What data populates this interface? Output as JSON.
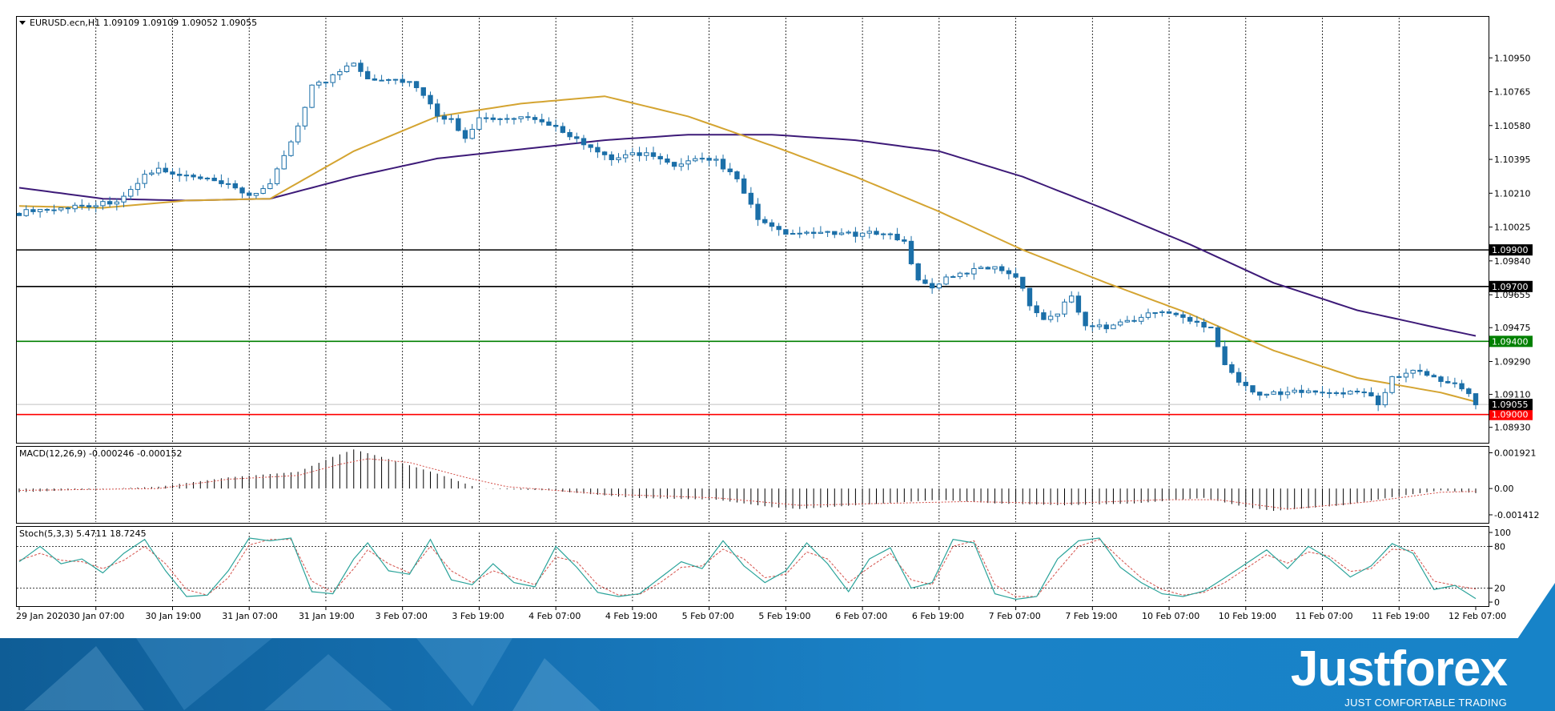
{
  "chart_data": {
    "type": "candlestick",
    "symbol_header": "EURUSD.ecn,H1  1.09109 1.09109 1.09052 1.09055",
    "price_axis": {
      "ticks": [
        "1.10950",
        "1.10765",
        "1.10580",
        "1.10395",
        "1.10210",
        "1.10025",
        "1.09840",
        "1.09655",
        "1.09475",
        "1.09290",
        "1.09110",
        "1.08930"
      ],
      "tick_values": [
        1.1095,
        1.10765,
        1.1058,
        1.10395,
        1.1021,
        1.10025,
        1.0984,
        1.09655,
        1.09475,
        1.0929,
        1.0911,
        1.0893
      ],
      "range": [
        1.0885,
        1.1117
      ]
    },
    "levels": [
      {
        "price": 1.099,
        "label": "1.09900",
        "color": "#000000"
      },
      {
        "price": 1.097,
        "label": "1.09700",
        "color": "#000000"
      },
      {
        "price": 1.094,
        "label": "1.09400",
        "color": "#008000"
      },
      {
        "price": 1.09,
        "label": "1.09000",
        "color": "#ff0000"
      }
    ],
    "current_price": {
      "price": 1.09055,
      "label": "1.09055"
    },
    "time_labels": [
      "29 Jan 2020",
      "30 Jan 07:00",
      "30 Jan 19:00",
      "31 Jan 07:00",
      "31 Jan 19:00",
      "3 Feb 07:00",
      "3 Feb 19:00",
      "4 Feb 07:00",
      "4 Feb 19:00",
      "5 Feb 07:00",
      "5 Feb 19:00",
      "6 Feb 07:00",
      "6 Feb 19:00",
      "7 Feb 07:00",
      "7 Feb 19:00",
      "10 Feb 07:00",
      "10 Feb 19:00",
      "11 Feb 07:00",
      "11 Feb 19:00",
      "12 Feb 07:00"
    ],
    "price_path": [
      [
        0,
        1.101
      ],
      [
        2,
        1.1012
      ],
      [
        5,
        1.1012
      ],
      [
        8,
        1.1014
      ],
      [
        11,
        1.1015
      ],
      [
        14,
        1.1017
      ],
      [
        16,
        1.1022
      ],
      [
        18,
        1.1031
      ],
      [
        20,
        1.1034
      ],
      [
        22,
        1.1031
      ],
      [
        26,
        1.1029
      ],
      [
        30,
        1.1025
      ],
      [
        33,
        1.102
      ],
      [
        36,
        1.1025
      ],
      [
        40,
        1.1058
      ],
      [
        42,
        1.108
      ],
      [
        44,
        1.1082
      ],
      [
        46,
        1.1088
      ],
      [
        48,
        1.1093
      ],
      [
        50,
        1.1084
      ],
      [
        54,
        1.1083
      ],
      [
        56,
        1.1082
      ],
      [
        58,
        1.1074
      ],
      [
        60,
        1.1064
      ],
      [
        62,
        1.1061
      ],
      [
        64,
        1.1052
      ],
      [
        66,
        1.1062
      ],
      [
        68,
        1.1061
      ],
      [
        72,
        1.1062
      ],
      [
        76,
        1.1059
      ],
      [
        79,
        1.1053
      ],
      [
        82,
        1.1045
      ],
      [
        85,
        1.1039
      ],
      [
        88,
        1.1043
      ],
      [
        91,
        1.1042
      ],
      [
        94,
        1.1035
      ],
      [
        97,
        1.1039
      ],
      [
        100,
        1.1039
      ],
      [
        103,
        1.1028
      ],
      [
        106,
        1.1007
      ],
      [
        109,
        1.1
      ],
      [
        112,
        1.0998
      ],
      [
        116,
        1.1
      ],
      [
        120,
        1.0998
      ],
      [
        124,
        1.1
      ],
      [
        127,
        1.0994
      ],
      [
        129,
        1.0973
      ],
      [
        131,
        1.097
      ],
      [
        133,
        1.0974
      ],
      [
        137,
        1.0979
      ],
      [
        140,
        1.0981
      ],
      [
        143,
        1.0976
      ],
      [
        145,
        1.096
      ],
      [
        147,
        1.0953
      ],
      [
        149,
        1.0955
      ],
      [
        151,
        1.0966
      ],
      [
        153,
        1.0948
      ],
      [
        156,
        1.0948
      ],
      [
        160,
        1.0952
      ],
      [
        164,
        1.0957
      ],
      [
        168,
        1.0951
      ],
      [
        171,
        1.0948
      ],
      [
        173,
        1.0928
      ],
      [
        175,
        1.0918
      ],
      [
        177,
        1.0912
      ],
      [
        181,
        1.0911
      ],
      [
        185,
        1.0914
      ],
      [
        189,
        1.0911
      ],
      [
        193,
        1.0913
      ],
      [
        195,
        1.0905
      ],
      [
        197,
        1.092
      ],
      [
        200,
        1.0924
      ],
      [
        204,
        1.0919
      ],
      [
        207,
        1.0915
      ],
      [
        209,
        1.09055
      ]
    ],
    "ma_fast": {
      "color": "#d4a431",
      "points": [
        [
          0,
          1.1014
        ],
        [
          12,
          1.1013
        ],
        [
          24,
          1.1017
        ],
        [
          36,
          1.1018
        ],
        [
          48,
          1.1044
        ],
        [
          60,
          1.1063
        ],
        [
          72,
          1.107
        ],
        [
          84,
          1.1074
        ],
        [
          96,
          1.1063
        ],
        [
          108,
          1.1047
        ],
        [
          120,
          1.103
        ],
        [
          132,
          1.1011
        ],
        [
          144,
          1.099
        ],
        [
          156,
          1.0972
        ],
        [
          168,
          1.0955
        ],
        [
          180,
          1.0935
        ],
        [
          192,
          1.092
        ],
        [
          204,
          1.0912
        ],
        [
          209,
          1.0907
        ]
      ]
    },
    "ma_slow": {
      "color": "#3d1a78",
      "points": [
        [
          0,
          1.1024
        ],
        [
          12,
          1.1018
        ],
        [
          24,
          1.1017
        ],
        [
          36,
          1.1018
        ],
        [
          48,
          1.103
        ],
        [
          60,
          1.104
        ],
        [
          72,
          1.1045
        ],
        [
          84,
          1.105
        ],
        [
          96,
          1.1053
        ],
        [
          108,
          1.1053
        ],
        [
          120,
          1.105
        ],
        [
          132,
          1.1044
        ],
        [
          144,
          1.103
        ],
        [
          156,
          1.1012
        ],
        [
          168,
          1.0993
        ],
        [
          180,
          1.0972
        ],
        [
          192,
          1.0957
        ],
        [
          204,
          1.0947
        ],
        [
          209,
          1.0943
        ]
      ]
    },
    "macd": {
      "label": "MACD(12,26,9) -0.000246 -0.000152",
      "ticks": [
        "0.001921",
        "0.00",
        "-0.001412"
      ],
      "tick_values": [
        0.001921,
        0,
        -0.001412
      ],
      "range": [
        -0.0018,
        0.0022
      ],
      "hist_path": [
        [
          0,
          -0.0002
        ],
        [
          20,
          0.0001
        ],
        [
          30,
          0.0006
        ],
        [
          40,
          0.0009
        ],
        [
          45,
          0.0017
        ],
        [
          48,
          0.0021
        ],
        [
          52,
          0.0017
        ],
        [
          60,
          0.0008
        ],
        [
          66,
          0.0
        ],
        [
          76,
          -0.0001
        ],
        [
          88,
          -0.0005
        ],
        [
          100,
          -0.0006
        ],
        [
          108,
          -0.001
        ],
        [
          112,
          -0.0011
        ],
        [
          124,
          -0.0008
        ],
        [
          132,
          -0.0006
        ],
        [
          140,
          -0.0008
        ],
        [
          150,
          -0.0009
        ],
        [
          160,
          -0.0008
        ],
        [
          170,
          -0.0005
        ],
        [
          176,
          -0.001
        ],
        [
          180,
          -0.0012
        ],
        [
          190,
          -0.0009
        ],
        [
          198,
          -0.0004
        ],
        [
          204,
          -0.0001
        ],
        [
          209,
          -0.000246
        ]
      ],
      "signal_path": [
        [
          0,
          -0.0001
        ],
        [
          20,
          0.0
        ],
        [
          30,
          0.0005
        ],
        [
          40,
          0.0007
        ],
        [
          46,
          0.0013
        ],
        [
          50,
          0.0016
        ],
        [
          56,
          0.0014
        ],
        [
          64,
          0.0006
        ],
        [
          70,
          0.0001
        ],
        [
          84,
          -0.0003
        ],
        [
          100,
          -0.0005
        ],
        [
          112,
          -0.0009
        ],
        [
          124,
          -0.0008
        ],
        [
          136,
          -0.0007
        ],
        [
          150,
          -0.0008
        ],
        [
          164,
          -0.0006
        ],
        [
          172,
          -0.0006
        ],
        [
          182,
          -0.0011
        ],
        [
          194,
          -0.0007
        ],
        [
          204,
          -0.0002
        ],
        [
          209,
          -0.000152
        ]
      ],
      "signal_color": "#d4504a"
    },
    "stoch": {
      "label": "Stoch(5,3,3) 5.4711 18.7245",
      "ticks": [
        "100",
        "80",
        "20",
        "0"
      ],
      "tick_values": [
        100,
        80,
        20,
        0
      ],
      "levels": [
        80,
        20
      ],
      "k_color": "#2aa39a",
      "d_color": "#d4504a",
      "k_path": [
        [
          0,
          58
        ],
        [
          3,
          80
        ],
        [
          6,
          55
        ],
        [
          9,
          62
        ],
        [
          12,
          42
        ],
        [
          15,
          70
        ],
        [
          18,
          90
        ],
        [
          21,
          45
        ],
        [
          24,
          8
        ],
        [
          27,
          10
        ],
        [
          30,
          45
        ],
        [
          33,
          92
        ],
        [
          36,
          88
        ],
        [
          39,
          92
        ],
        [
          42,
          15
        ],
        [
          45,
          12
        ],
        [
          48,
          62
        ],
        [
          50,
          85
        ],
        [
          53,
          45
        ],
        [
          56,
          40
        ],
        [
          59,
          90
        ],
        [
          62,
          32
        ],
        [
          65,
          25
        ],
        [
          68,
          55
        ],
        [
          71,
          28
        ],
        [
          74,
          22
        ],
        [
          77,
          80
        ],
        [
          80,
          50
        ],
        [
          83,
          14
        ],
        [
          86,
          8
        ],
        [
          89,
          12
        ],
        [
          92,
          35
        ],
        [
          95,
          58
        ],
        [
          98,
          48
        ],
        [
          101,
          88
        ],
        [
          104,
          52
        ],
        [
          107,
          28
        ],
        [
          110,
          45
        ],
        [
          113,
          85
        ],
        [
          116,
          55
        ],
        [
          119,
          15
        ],
        [
          122,
          62
        ],
        [
          125,
          78
        ],
        [
          128,
          20
        ],
        [
          131,
          28
        ],
        [
          134,
          90
        ],
        [
          137,
          85
        ],
        [
          140,
          12
        ],
        [
          143,
          4
        ],
        [
          146,
          8
        ],
        [
          149,
          62
        ],
        [
          152,
          88
        ],
        [
          155,
          92
        ],
        [
          158,
          50
        ],
        [
          161,
          28
        ],
        [
          164,
          12
        ],
        [
          167,
          8
        ],
        [
          170,
          16
        ],
        [
          173,
          35
        ],
        [
          176,
          55
        ],
        [
          179,
          75
        ],
        [
          182,
          48
        ],
        [
          185,
          80
        ],
        [
          188,
          62
        ],
        [
          191,
          36
        ],
        [
          194,
          52
        ],
        [
          197,
          84
        ],
        [
          200,
          70
        ],
        [
          203,
          18
        ],
        [
          206,
          24
        ],
        [
          209,
          5
        ]
      ],
      "d_path": [
        [
          0,
          60
        ],
        [
          3,
          70
        ],
        [
          6,
          60
        ],
        [
          9,
          58
        ],
        [
          12,
          48
        ],
        [
          15,
          60
        ],
        [
          18,
          80
        ],
        [
          21,
          55
        ],
        [
          24,
          18
        ],
        [
          27,
          10
        ],
        [
          30,
          35
        ],
        [
          33,
          82
        ],
        [
          36,
          90
        ],
        [
          39,
          90
        ],
        [
          42,
          30
        ],
        [
          45,
          14
        ],
        [
          48,
          48
        ],
        [
          50,
          75
        ],
        [
          53,
          55
        ],
        [
          56,
          42
        ],
        [
          59,
          80
        ],
        [
          62,
          45
        ],
        [
          65,
          28
        ],
        [
          68,
          45
        ],
        [
          71,
          35
        ],
        [
          74,
          25
        ],
        [
          77,
          65
        ],
        [
          80,
          58
        ],
        [
          83,
          25
        ],
        [
          86,
          10
        ],
        [
          89,
          11
        ],
        [
          92,
          28
        ],
        [
          95,
          50
        ],
        [
          98,
          52
        ],
        [
          101,
          76
        ],
        [
          104,
          62
        ],
        [
          107,
          35
        ],
        [
          110,
          40
        ],
        [
          113,
          72
        ],
        [
          116,
          62
        ],
        [
          119,
          28
        ],
        [
          122,
          50
        ],
        [
          125,
          70
        ],
        [
          128,
          32
        ],
        [
          131,
          25
        ],
        [
          134,
          80
        ],
        [
          137,
          88
        ],
        [
          140,
          25
        ],
        [
          143,
          8
        ],
        [
          146,
          8
        ],
        [
          149,
          45
        ],
        [
          152,
          80
        ],
        [
          155,
          90
        ],
        [
          158,
          62
        ],
        [
          161,
          35
        ],
        [
          164,
          18
        ],
        [
          167,
          10
        ],
        [
          170,
          14
        ],
        [
          173,
          28
        ],
        [
          176,
          48
        ],
        [
          179,
          68
        ],
        [
          182,
          56
        ],
        [
          185,
          72
        ],
        [
          188,
          66
        ],
        [
          191,
          44
        ],
        [
          194,
          48
        ],
        [
          197,
          76
        ],
        [
          200,
          74
        ],
        [
          203,
          30
        ],
        [
          206,
          24
        ],
        [
          209,
          18.7
        ]
      ]
    }
  },
  "branding": {
    "logo": "Justforex",
    "tagline": "JUST COMFORTABLE TRADING"
  }
}
